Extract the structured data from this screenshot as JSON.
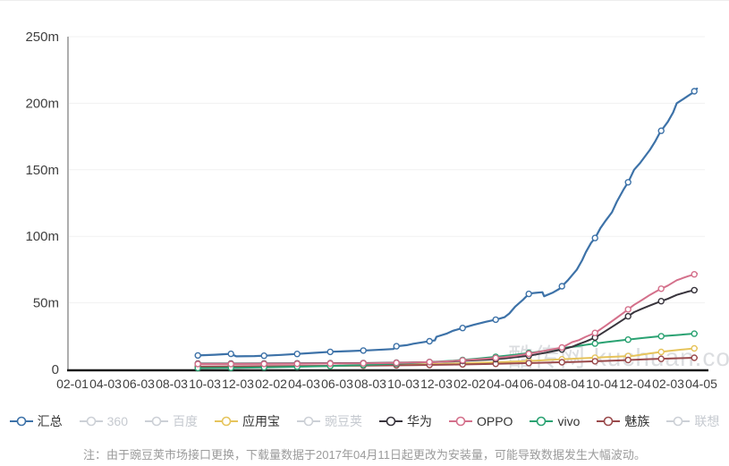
{
  "watermark": "酷传网 kuchuan.com",
  "note": "注：由于豌豆荚市场接口更换，下载量数据于2017年04月11日起更改为安装量，可能导致数据发生大幅波动。",
  "colors": {
    "total": "#3d72a8",
    "yingyongbao": "#e6c45c",
    "huawei": "#38343c",
    "oppo": "#d4708b",
    "vivo": "#2aa272",
    "meizu": "#9a4a4c",
    "inactive": "#ccd0d6",
    "axis_x": "#1a1a1a",
    "axis_y": "#aeaeae",
    "grid": "#f1f1f1",
    "tick_text": "#404040"
  },
  "legend": {
    "items": [
      {
        "key": "total",
        "label": "汇总",
        "color": "#3d72a8",
        "active": true
      },
      {
        "key": "qihoo360",
        "label": "360",
        "color": "#ccd0d6",
        "active": false
      },
      {
        "key": "baidu",
        "label": "百度",
        "color": "#ccd0d6",
        "active": false
      },
      {
        "key": "yingyongbao",
        "label": "应用宝",
        "color": "#e6c45c",
        "active": true
      },
      {
        "key": "wandoujia",
        "label": "豌豆荚",
        "color": "#ccd0d6",
        "active": false
      },
      {
        "key": "huawei",
        "label": "华为",
        "color": "#38343c",
        "active": true
      },
      {
        "key": "oppo",
        "label": "OPPO",
        "color": "#d4708b",
        "active": true
      },
      {
        "key": "vivo",
        "label": "vivo",
        "color": "#2aa272",
        "active": true
      },
      {
        "key": "meizu",
        "label": "魅族",
        "color": "#9a4a4c",
        "active": true
      },
      {
        "key": "lenovo",
        "label": "联想",
        "color": "#ccd0d6",
        "active": false
      }
    ]
  },
  "chart_data": {
    "type": "line",
    "title": "",
    "unit": "m = millions (downloads / installs)",
    "ylim": [
      0,
      250
    ],
    "grid": true,
    "legend_position": "bottom",
    "y_ticks": [
      {
        "label": "250m",
        "value": 250
      },
      {
        "label": "200m",
        "value": 200
      },
      {
        "label": "150m",
        "value": 150
      },
      {
        "label": "100m",
        "value": 100
      },
      {
        "label": "50m",
        "value": 50
      },
      {
        "label": "0",
        "value": 0
      }
    ],
    "x_labels": [
      "02-01",
      "04-03",
      "06-03",
      "08-03",
      "10-03",
      "12-03",
      "02-02",
      "04-03",
      "06-03",
      "08-03",
      "10-03",
      "12-03",
      "02-02",
      "04-04",
      "06-04",
      "08-04",
      "10-04",
      "12-04",
      "02-03",
      "04-05"
    ],
    "series": [
      {
        "key": "yingyongbao",
        "name": "应用宝",
        "color": "#e6c45c",
        "width": 2,
        "points": [
          [
            3.79,
            1.5
          ],
          [
            5.79,
            2.0
          ],
          [
            7.87,
            2.6
          ],
          [
            8.94,
            3.0
          ],
          [
            10.3,
            3.6
          ],
          [
            11.5,
            4.4
          ],
          [
            12.12,
            4.9
          ],
          [
            12.8,
            5.4
          ],
          [
            13.37,
            5.9
          ],
          [
            13.99,
            6.6
          ],
          [
            14.5,
            7.2
          ],
          [
            15.1,
            8.0
          ],
          [
            15.51,
            8.5
          ],
          [
            16.12,
            9.2
          ],
          [
            16.65,
            9.8
          ],
          [
            16.97,
            10.3
          ],
          [
            17.45,
            12.0
          ],
          [
            17.99,
            13.8
          ],
          [
            18.45,
            15.0
          ],
          [
            18.87,
            16.0
          ]
        ]
      },
      {
        "key": "meizu",
        "name": "魅族",
        "color": "#9a4a4c",
        "width": 2,
        "points": [
          [
            3.79,
            2.2
          ],
          [
            5.79,
            2.4
          ],
          [
            7.87,
            2.7
          ],
          [
            8.94,
            2.9
          ],
          [
            10.3,
            3.2
          ],
          [
            11.5,
            3.6
          ],
          [
            12.12,
            3.9
          ],
          [
            12.8,
            4.2
          ],
          [
            13.37,
            4.5
          ],
          [
            13.99,
            4.9
          ],
          [
            14.5,
            5.2
          ],
          [
            15.1,
            5.6
          ],
          [
            15.51,
            5.9
          ],
          [
            16.12,
            6.4
          ],
          [
            16.65,
            6.9
          ],
          [
            16.97,
            7.2
          ],
          [
            17.45,
            7.7
          ],
          [
            17.99,
            8.1
          ],
          [
            18.45,
            8.5
          ],
          [
            18.87,
            8.8
          ]
        ]
      },
      {
        "key": "vivo",
        "name": "vivo",
        "color": "#2aa272",
        "width": 2,
        "points": [
          [
            3.79,
            1.0
          ],
          [
            5.0,
            1.2
          ],
          [
            5.79,
            1.5
          ],
          [
            6.8,
            2.0
          ],
          [
            7.87,
            2.6
          ],
          [
            8.94,
            3.4
          ],
          [
            9.5,
            4.0
          ],
          [
            10.3,
            4.8
          ],
          [
            10.95,
            5.7
          ],
          [
            11.5,
            6.5
          ],
          [
            12.12,
            7.8
          ],
          [
            12.8,
            9.5
          ],
          [
            13.37,
            11.0
          ],
          [
            13.99,
            13.0
          ],
          [
            14.5,
            14.8
          ],
          [
            15.1,
            17.0
          ],
          [
            15.51,
            18.5
          ],
          [
            16.12,
            20.5
          ],
          [
            16.65,
            22.0
          ],
          [
            17.2,
            23.5
          ],
          [
            17.7,
            24.8
          ],
          [
            18.26,
            25.8
          ],
          [
            18.87,
            27.0
          ]
        ]
      },
      {
        "key": "huawei",
        "name": "华为",
        "color": "#38343c",
        "width": 2,
        "points": [
          [
            3.79,
            4.4
          ],
          [
            5.0,
            4.4
          ],
          [
            6.8,
            4.5
          ],
          [
            8.9,
            4.8
          ],
          [
            10.0,
            5.1
          ],
          [
            10.95,
            5.6
          ],
          [
            11.5,
            6.0
          ],
          [
            12.12,
            6.8
          ],
          [
            12.6,
            7.4
          ],
          [
            13.05,
            8.2
          ],
          [
            13.4,
            9.2
          ],
          [
            13.8,
            10.3
          ],
          [
            14.1,
            11.6
          ],
          [
            14.31,
            12.6
          ],
          [
            14.6,
            14.0
          ],
          [
            14.8,
            15.0
          ],
          [
            15.1,
            17.0
          ],
          [
            15.3,
            19.0
          ],
          [
            15.51,
            21.0
          ],
          [
            15.8,
            24.0
          ],
          [
            16.12,
            29.0
          ],
          [
            16.4,
            33.5
          ],
          [
            16.65,
            37.5
          ],
          [
            16.97,
            43.0
          ],
          [
            17.2,
            45.5
          ],
          [
            17.45,
            48.0
          ],
          [
            17.7,
            50.5
          ],
          [
            17.99,
            53.0
          ],
          [
            18.26,
            56.0
          ],
          [
            18.6,
            58.5
          ],
          [
            18.87,
            60.0
          ]
        ]
      },
      {
        "key": "oppo",
        "name": "OPPO",
        "color": "#d4708b",
        "width": 2,
        "points": [
          [
            3.79,
            4.0
          ],
          [
            5.0,
            4.0
          ],
          [
            6.8,
            4.2
          ],
          [
            8.9,
            4.6
          ],
          [
            10.0,
            5.0
          ],
          [
            10.95,
            5.6
          ],
          [
            11.5,
            6.3
          ],
          [
            12.12,
            7.4
          ],
          [
            12.6,
            8.2
          ],
          [
            13.05,
            9.2
          ],
          [
            13.4,
            10.3
          ],
          [
            13.8,
            11.8
          ],
          [
            14.1,
            13.2
          ],
          [
            14.31,
            14.2
          ],
          [
            14.6,
            15.5
          ],
          [
            14.8,
            16.5
          ],
          [
            14.95,
            18.5
          ],
          [
            15.1,
            20.5
          ],
          [
            15.3,
            22.0
          ],
          [
            15.51,
            24.5
          ],
          [
            15.8,
            27.5
          ],
          [
            16.12,
            33.0
          ],
          [
            16.4,
            38.0
          ],
          [
            16.65,
            42.5
          ],
          [
            16.97,
            48.5
          ],
          [
            17.2,
            52.0
          ],
          [
            17.45,
            56.0
          ],
          [
            17.7,
            59.5
          ],
          [
            17.99,
            63.0
          ],
          [
            18.26,
            67.0
          ],
          [
            18.6,
            70.0
          ],
          [
            18.87,
            72.0
          ]
        ]
      },
      {
        "key": "total",
        "name": "汇总",
        "color": "#3d72a8",
        "width": 2.2,
        "points": [
          [
            3.79,
            10.5
          ],
          [
            4.3,
            11.0
          ],
          [
            4.79,
            11.7
          ],
          [
            4.95,
            9.8
          ],
          [
            5.5,
            10.0
          ],
          [
            5.79,
            10.3
          ],
          [
            6.3,
            10.9
          ],
          [
            6.79,
            11.6
          ],
          [
            7.3,
            12.4
          ],
          [
            7.87,
            13.3
          ],
          [
            8.4,
            13.8
          ],
          [
            8.94,
            14.3
          ],
          [
            9.4,
            14.9
          ],
          [
            9.7,
            15.3
          ],
          [
            9.75,
            17.3
          ],
          [
            10.1,
            18.2
          ],
          [
            10.3,
            19.3
          ],
          [
            10.6,
            20.4
          ],
          [
            10.95,
            21.8
          ],
          [
            11.0,
            24.5
          ],
          [
            11.3,
            26.8
          ],
          [
            11.5,
            29.0
          ],
          [
            11.8,
            31.2
          ],
          [
            12.12,
            33.5
          ],
          [
            12.5,
            35.8
          ],
          [
            12.8,
            37.4
          ],
          [
            13.05,
            39.2
          ],
          [
            13.2,
            42.0
          ],
          [
            13.37,
            47.0
          ],
          [
            13.6,
            52.0
          ],
          [
            13.8,
            57.0
          ],
          [
            14.0,
            57.5
          ],
          [
            14.2,
            58.0
          ],
          [
            14.25,
            55.0
          ],
          [
            14.5,
            57.5
          ],
          [
            14.71,
            60.5
          ],
          [
            14.97,
            67.0
          ],
          [
            15.24,
            75.0
          ],
          [
            15.4,
            82.0
          ],
          [
            15.51,
            88.0
          ],
          [
            15.67,
            95.0
          ],
          [
            15.8,
            99.0
          ],
          [
            15.95,
            106.0
          ],
          [
            16.12,
            112.0
          ],
          [
            16.3,
            118.0
          ],
          [
            16.45,
            126.0
          ],
          [
            16.65,
            135.0
          ],
          [
            16.8,
            141.0
          ],
          [
            16.97,
            150.0
          ],
          [
            17.15,
            155.0
          ],
          [
            17.3,
            160.0
          ],
          [
            17.45,
            165.0
          ],
          [
            17.6,
            171.0
          ],
          [
            17.75,
            178.0
          ],
          [
            17.99,
            186.0
          ],
          [
            18.15,
            193.0
          ],
          [
            18.26,
            200.0
          ],
          [
            18.45,
            203.0
          ],
          [
            18.6,
            205.5
          ],
          [
            18.75,
            208.0
          ],
          [
            18.87,
            211.0
          ]
        ]
      }
    ]
  }
}
